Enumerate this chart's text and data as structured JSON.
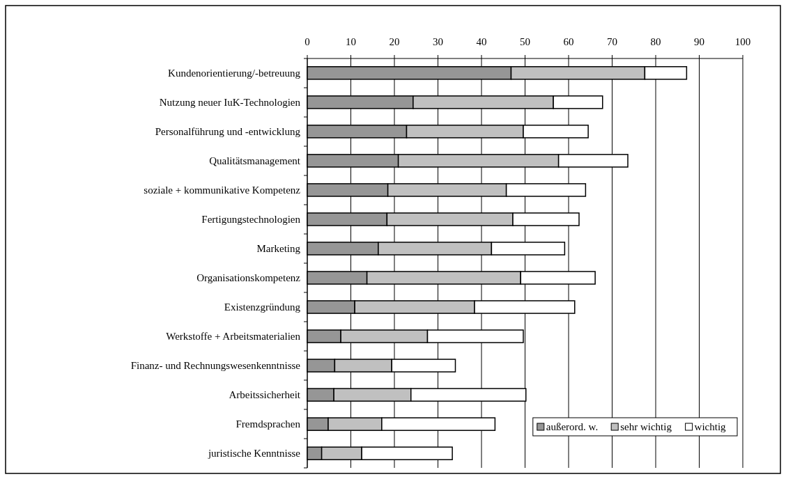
{
  "chart_data": {
    "type": "bar",
    "orientation": "horizontal",
    "stacked": true,
    "categories": [
      "Kundenorientierung/-betreuung",
      "Nutzung neuer IuK-Technologien",
      "Personalführung und -entwicklung",
      "Qualitätsmanagement",
      "soziale + kommunikative Kompetenz",
      "Fertigungstechnologien",
      "Marketing",
      "Organisationskompetenz",
      "Existenzgründung",
      "Werkstoffe + Arbeitsmaterialien",
      "Finanz- und Rechnungswesenkenntnisse",
      "Arbeitssicherheit",
      "Fremdsprachen",
      "juristische Kenntnisse"
    ],
    "series": [
      {
        "name": "außerord. w.",
        "color": "#969696",
        "values": [
          46.8,
          24.3,
          22.8,
          20.9,
          18.5,
          18.3,
          16.3,
          13.7,
          10.9,
          7.7,
          6.3,
          6.1,
          4.8,
          3.3
        ]
      },
      {
        "name": "sehr wichtig",
        "color": "#c0c0c0",
        "values": [
          30.7,
          32.2,
          26.8,
          36.8,
          27.2,
          28.9,
          26.0,
          35.3,
          27.5,
          19.9,
          13.1,
          17.7,
          12.3,
          9.2
        ]
      },
      {
        "name": "wichtig",
        "color": "#ffffff",
        "values": [
          9.6,
          11.3,
          14.9,
          15.9,
          18.2,
          15.2,
          16.8,
          17.1,
          23.0,
          22.0,
          14.6,
          26.4,
          26.0,
          20.8
        ]
      }
    ],
    "xlim": [
      0,
      100
    ],
    "xticks": [
      0,
      10,
      20,
      30,
      40,
      50,
      60,
      70,
      80,
      90,
      100
    ],
    "grid": "x",
    "legend": "bottom right"
  }
}
